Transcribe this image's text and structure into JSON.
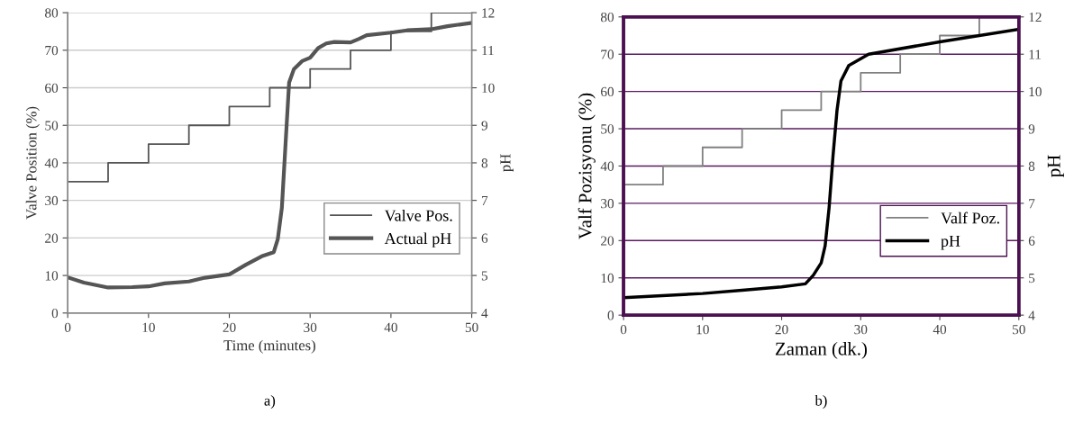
{
  "chart_data": [
    {
      "type": "line",
      "xlabel": "Time (minutes)",
      "ylabel": "Valve Position (%)",
      "y2label": "pH",
      "annotations": [
        "a)"
      ],
      "xlim": [
        0,
        50
      ],
      "xticks": [
        0,
        10,
        20,
        30,
        40,
        50
      ],
      "ylim": [
        0,
        80
      ],
      "yticks": [
        0,
        10,
        20,
        30,
        40,
        50,
        60,
        70,
        80
      ],
      "y2lim": [
        4,
        12
      ],
      "y2ticks": [
        4,
        5,
        6,
        7,
        8,
        9,
        10,
        11,
        12
      ],
      "grid": "y",
      "legend": "lower right",
      "series": [
        {
          "name": "Valve Pos.",
          "type": "step",
          "color": "#555555",
          "x": [
            0,
            5,
            10,
            15,
            20,
            25,
            30,
            35,
            40,
            45,
            50
          ],
          "values": [
            35,
            40,
            45,
            50,
            55,
            60,
            65,
            70,
            75,
            80,
            80
          ]
        },
        {
          "name": "Actual pH",
          "axis": "y2",
          "color": "#555555",
          "x": [
            0,
            2,
            5,
            8,
            10,
            12,
            15,
            17,
            20,
            22,
            24,
            25.5,
            26,
            26.5,
            27,
            27.4,
            28,
            29,
            30,
            31,
            32,
            33,
            35,
            36,
            37,
            40,
            42,
            45,
            47,
            50
          ],
          "values": [
            4.95,
            4.81,
            4.68,
            4.69,
            4.71,
            4.79,
            4.84,
            4.94,
            5.03,
            5.28,
            5.51,
            5.62,
            5.97,
            6.8,
            8.66,
            10.14,
            10.5,
            10.71,
            10.8,
            11.06,
            11.18,
            11.22,
            11.21,
            11.3,
            11.4,
            11.47,
            11.53,
            11.56,
            11.64,
            11.73
          ]
        }
      ]
    },
    {
      "type": "line",
      "xlabel": "Zaman (dk.)",
      "ylabel": "Valf Pozisyonu (%)",
      "y2label": "pH",
      "annotations": [
        "b)"
      ],
      "xlim": [
        0,
        50
      ],
      "xticks": [
        0,
        10,
        20,
        30,
        40,
        50
      ],
      "ylim": [
        0,
        80
      ],
      "yticks": [
        0,
        10,
        20,
        30,
        40,
        50,
        60,
        70,
        80
      ],
      "y2lim": [
        4,
        12
      ],
      "y2ticks": [
        4,
        5,
        6,
        7,
        8,
        9,
        10,
        11,
        12
      ],
      "grid": "y",
      "legend": "lower right",
      "series": [
        {
          "name": "Valf Poz.",
          "type": "step",
          "color": "#808080",
          "x": [
            0,
            5,
            10,
            15,
            20,
            25,
            30,
            35,
            40,
            45,
            50
          ],
          "values": [
            35,
            40,
            45,
            50,
            55,
            60,
            65,
            70,
            75,
            80,
            80
          ]
        },
        {
          "name": "pH",
          "axis": "y2",
          "color": "#000000",
          "x": [
            0,
            10,
            15,
            20,
            23,
            24,
            25,
            25.5,
            26,
            26.5,
            27,
            27.5,
            28.5,
            30,
            31,
            40,
            50
          ],
          "values": [
            4.47,
            4.58,
            4.67,
            4.76,
            4.84,
            5.07,
            5.4,
            5.86,
            6.88,
            8.28,
            9.49,
            10.28,
            10.7,
            10.88,
            11.0,
            11.33,
            11.67
          ]
        }
      ]
    }
  ]
}
